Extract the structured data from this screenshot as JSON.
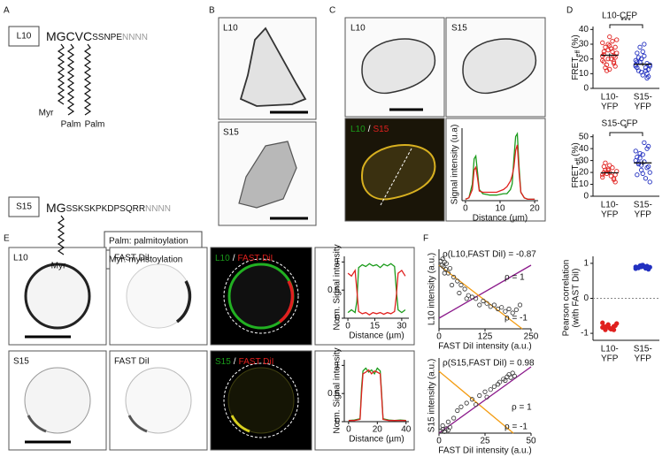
{
  "panel_a": {
    "letter": "A",
    "l10": {
      "name": "L10",
      "seq_main": "MGCVC",
      "seq_tail": "SSNPE",
      "seq_linker": "NNNN",
      "lipids": [
        "Myr",
        "Palm",
        "Palm"
      ]
    },
    "s15": {
      "name": "S15",
      "seq_main": "MG",
      "seq_tail": "SSKSKPKDPSQRR",
      "seq_linker": "NNNN",
      "lipids": [
        "Myr"
      ]
    },
    "legend": [
      "Palm: palmitoylation",
      "Myr: myristoylation"
    ]
  },
  "panel_b": {
    "letter": "B",
    "images": [
      "L10",
      "S15"
    ]
  },
  "panel_c": {
    "letter": "C",
    "images": [
      "L10",
      "S15"
    ],
    "merge": [
      "L10",
      "/",
      "S15"
    ],
    "plot": {
      "ylabel": "Signal intensity (u.a)",
      "xlabel": "Distance (µm)",
      "xlim": [
        -1,
        21
      ],
      "ylim": [
        0,
        260
      ],
      "xticks": [
        0,
        10,
        20
      ],
      "x": [
        0,
        1,
        2,
        2.5,
        3,
        3.5,
        4,
        5,
        7,
        9,
        11,
        12,
        13,
        13.5,
        14,
        14.5,
        15,
        15.5,
        16,
        17,
        18,
        19,
        20
      ],
      "series": [
        {
          "color": "#1a9b1a",
          "values": [
            5,
            10,
            60,
            150,
            160,
            100,
            40,
            25,
            20,
            20,
            25,
            25,
            40,
            60,
            150,
            230,
            240,
            120,
            30,
            10,
            5,
            5,
            5
          ]
        },
        {
          "color": "#e0201e",
          "values": [
            5,
            10,
            40,
            110,
            120,
            80,
            35,
            30,
            30,
            30,
            40,
            50,
            70,
            90,
            120,
            180,
            200,
            100,
            30,
            10,
            5,
            5,
            5
          ]
        }
      ]
    }
  },
  "panel_d": {
    "letter": "D",
    "plots": [
      {
        "title": "L10-CFP",
        "ylabel": [
          "FRET",
          "eff",
          "(%)"
        ],
        "significance": "***",
        "ylim": [
          0,
          42
        ],
        "yticks": [
          0,
          10,
          20,
          30,
          40
        ],
        "categories": [
          [
            "L10-",
            "YFP"
          ],
          [
            "S15-",
            "YFP"
          ]
        ],
        "series": [
          {
            "color": "#e0201e",
            "mean": 22.5,
            "sem": 1.2,
            "values": [
              22,
              30,
              18,
              25,
              35,
              15,
              28,
              20,
              24,
              12,
              32,
              19,
              26,
              17,
              23,
              29,
              21,
              14,
              27,
              33,
              16,
              25,
              31,
              20,
              22,
              18,
              13,
              28
            ]
          },
          {
            "color": "#2230c0",
            "mean": 16.4,
            "sem": 1.2,
            "values": [
              15,
              20,
              10,
              18,
              25,
              8,
              12,
              22,
              16,
              28,
              14,
              19,
              11,
              17,
              24,
              9,
              13,
              21,
              30,
              15,
              18,
              12,
              16,
              20,
              7,
              14
            ]
          }
        ]
      },
      {
        "title": "S15-CFP",
        "ylabel": [
          "FRET",
          "eff",
          "(%)"
        ],
        "significance": "*",
        "ylim": [
          0,
          52
        ],
        "yticks": [
          0,
          10,
          20,
          30,
          40,
          50
        ],
        "categories": [
          [
            "L10-",
            "YFP"
          ],
          [
            "S15-",
            "YFP"
          ]
        ],
        "series": [
          {
            "color": "#e0201e",
            "mean": 19.7,
            "sem": 1.0,
            "values": [
              18,
              22,
              15,
              25,
              20,
              12,
              28,
              17,
              21,
              19,
              24,
              16,
              23,
              14,
              20,
              26,
              18,
              22
            ]
          },
          {
            "color": "#2230c0",
            "mean": 28,
            "sem": 2,
            "values": [
              30,
              22,
              40,
              18,
              35,
              25,
              28,
              45,
              20,
              32,
              15,
              38,
              26,
              24,
              33,
              19,
              42,
              27,
              29,
              12,
              36
            ]
          }
        ]
      }
    ]
  },
  "panel_e": {
    "letter": "E",
    "rows": [
      {
        "images": [
          "L10",
          "FAST DiI"
        ],
        "merge": [
          "L10",
          "/",
          "FAST DiI"
        ],
        "plot": {
          "ylabel": "Norm. Signal intensity",
          "xlabel": "Distance (µm)",
          "xlim": [
            -2,
            34
          ],
          "ylim": [
            0,
            1.1
          ],
          "xticks": [
            0,
            15,
            30
          ],
          "yticks": [
            0,
            0.5,
            1
          ],
          "x": [
            0,
            2,
            4,
            5,
            6,
            8,
            10,
            12,
            14,
            16,
            18,
            20,
            22,
            24,
            26,
            27,
            28,
            30,
            32
          ],
          "series": [
            {
              "color": "#1a9b1a",
              "values": [
                0.1,
                0.15,
                0.1,
                0.3,
                0.9,
                0.95,
                0.92,
                0.97,
                0.93,
                0.95,
                0.9,
                0.96,
                0.93,
                0.97,
                0.92,
                0.5,
                0.15,
                0.1,
                0.15
              ]
            },
            {
              "color": "#e0201e",
              "values": [
                0.8,
                0.75,
                0.85,
                0.5,
                0.12,
                0.08,
                0.1,
                0.06,
                0.1,
                0.08,
                0.1,
                0.07,
                0.1,
                0.08,
                0.12,
                0.4,
                0.8,
                0.85,
                0.75
              ]
            }
          ]
        }
      },
      {
        "images": [
          "S15",
          "FAST DiI"
        ],
        "merge": [
          "S15",
          "/",
          "FAST DiI"
        ],
        "plot": {
          "ylabel": "Norm. Signal intensity",
          "xlabel": "Distance (µm)",
          "xlim": [
            -3,
            42
          ],
          "ylim": [
            0,
            1.1
          ],
          "xticks": [
            0,
            20,
            40
          ],
          "yticks": [
            0,
            0.5,
            1
          ],
          "x": [
            0,
            4,
            8,
            9,
            10,
            12,
            14,
            16,
            18,
            20,
            22,
            23,
            24,
            28,
            32,
            36,
            40
          ],
          "series": [
            {
              "color": "#1a9b1a",
              "values": [
                0.02,
                0.03,
                0.05,
                0.6,
                0.9,
                0.95,
                0.88,
                0.92,
                0.85,
                0.95,
                0.9,
                0.5,
                0.05,
                0.03,
                0.02,
                0.03,
                0.02
              ]
            },
            {
              "color": "#e0201e",
              "values": [
                0.02,
                0.02,
                0.04,
                0.5,
                0.85,
                0.88,
                0.92,
                0.85,
                0.9,
                0.88,
                0.85,
                0.45,
                0.04,
                0.02,
                0.02,
                0.02,
                0.02
              ]
            }
          ]
        }
      }
    ]
  },
  "panel_f": {
    "letter": "F",
    "scatter": [
      {
        "annotation": "ρ(L10,FAST DiI) = -0.87",
        "rho_pos": "ρ = 1",
        "rho_neg": "ρ = -1",
        "xlabel": "FAST DiI intensity (a.u.)",
        "ylabel": "L10 intensity (a.u.)",
        "xlim": [
          0,
          250
        ],
        "ylim": [
          0,
          100
        ],
        "xticks": [
          0,
          125,
          250
        ],
        "x": [
          5,
          8,
          10,
          12,
          15,
          18,
          20,
          25,
          30,
          40,
          50,
          60,
          70,
          80,
          90,
          100,
          110,
          120,
          130,
          140,
          150,
          160,
          170,
          180,
          190,
          200,
          210,
          220,
          15,
          35,
          55,
          75
        ],
        "y": [
          85,
          80,
          88,
          78,
          84,
          75,
          82,
          70,
          76,
          65,
          60,
          55,
          50,
          42,
          40,
          38,
          30,
          35,
          32,
          28,
          30,
          25,
          27,
          22,
          25,
          20,
          24,
          30,
          70,
          55,
          45,
          38
        ]
      },
      {
        "annotation": "ρ(S15,FAST DiI) = 0.98",
        "rho_pos": "ρ = 1",
        "rho_neg": "ρ = -1",
        "xlabel": "FAST DiI intensity (a.u.)",
        "ylabel": "S15 intensity (a.u.)",
        "xlim": [
          0,
          50
        ],
        "ylim": [
          0,
          100
        ],
        "xticks": [
          0,
          25,
          50
        ],
        "x": [
          1,
          2,
          3,
          4,
          5,
          6,
          8,
          10,
          12,
          15,
          18,
          20,
          22,
          25,
          28,
          30,
          32,
          33,
          35,
          36,
          37,
          38,
          39,
          40,
          41,
          2,
          5,
          26
        ],
        "y": [
          3,
          5,
          2,
          6,
          4,
          8,
          20,
          30,
          35,
          40,
          45,
          38,
          50,
          55,
          58,
          62,
          65,
          68,
          72,
          70,
          75,
          78,
          74,
          80,
          76,
          10,
          15,
          48
        ]
      }
    ],
    "pearson": {
      "ylabel": [
        "Pearson correlation",
        "(with FAST DiI)"
      ],
      "ylim": [
        -1.2,
        1.2
      ],
      "yticks": [
        -1,
        0,
        1
      ],
      "categories": [
        [
          "L10-",
          "YFP"
        ],
        [
          "S15-",
          "YFP"
        ]
      ],
      "series": [
        {
          "color": "#e0201e",
          "values": [
            -0.7,
            -0.75,
            -0.8,
            -0.82,
            -0.85,
            -0.78,
            -0.9,
            -0.88,
            -0.72,
            -0.8,
            -0.86,
            -0.83,
            -0.76,
            -0.9,
            -0.81
          ]
        },
        {
          "color": "#2230c0",
          "values": [
            0.85,
            0.9,
            0.92,
            0.88,
            0.95,
            0.83,
            0.87,
            0.91,
            0.89,
            0.93,
            0.86,
            0.9,
            0.94,
            0.88
          ]
        }
      ]
    }
  }
}
